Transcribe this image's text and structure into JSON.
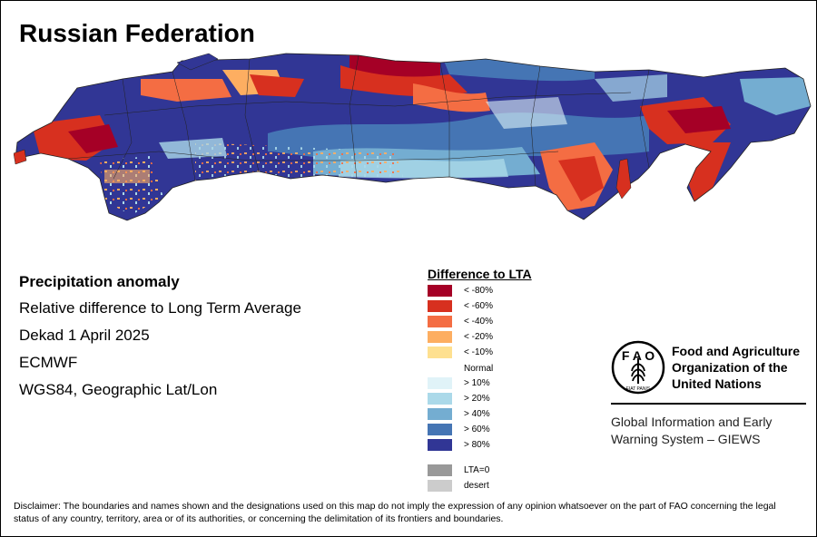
{
  "title": "Russian Federation",
  "info": {
    "heading": "Precipitation anomaly",
    "lines": [
      "Relative difference to Long Term Average",
      "Dekad 1 April 2025",
      "ECMWF",
      "WGS84, Geographic Lat/Lon"
    ]
  },
  "legend": {
    "title": "Difference to LTA",
    "items": [
      {
        "label": "< -80%",
        "color": "#a50026"
      },
      {
        "label": "< -60%",
        "color": "#d7301f"
      },
      {
        "label": "< -40%",
        "color": "#f46d43"
      },
      {
        "label": "< -20%",
        "color": "#fdae61"
      },
      {
        "label": "< -10%",
        "color": "#fee090"
      },
      {
        "label": "Normal",
        "color": ""
      },
      {
        "label": "> 10%",
        "color": "#e0f3f8"
      },
      {
        "label": "> 20%",
        "color": "#abd9e9"
      },
      {
        "label": "> 40%",
        "color": "#74add1"
      },
      {
        "label": "> 60%",
        "color": "#4575b4"
      },
      {
        "label": "> 80%",
        "color": "#313695"
      },
      {
        "label": "LTA=0",
        "color": "#999999"
      },
      {
        "label": "desert",
        "color": "#cccccc"
      }
    ]
  },
  "logo": {
    "fao_name": "Food and Agriculture Organization of the United Nations",
    "fao_icon": "fao-emblem-icon",
    "giews_name": "Global Information and Early Warning System – GIEWS"
  },
  "disclaimer": "Disclaimer: The boundaries and names shown and the designations used on this map do not imply the expression of any opinion whatsoever on the part of FAO concerning the legal status of any country, territory, area or of its authorities, or concerning the delimitation of its frontiers and boundaries."
}
